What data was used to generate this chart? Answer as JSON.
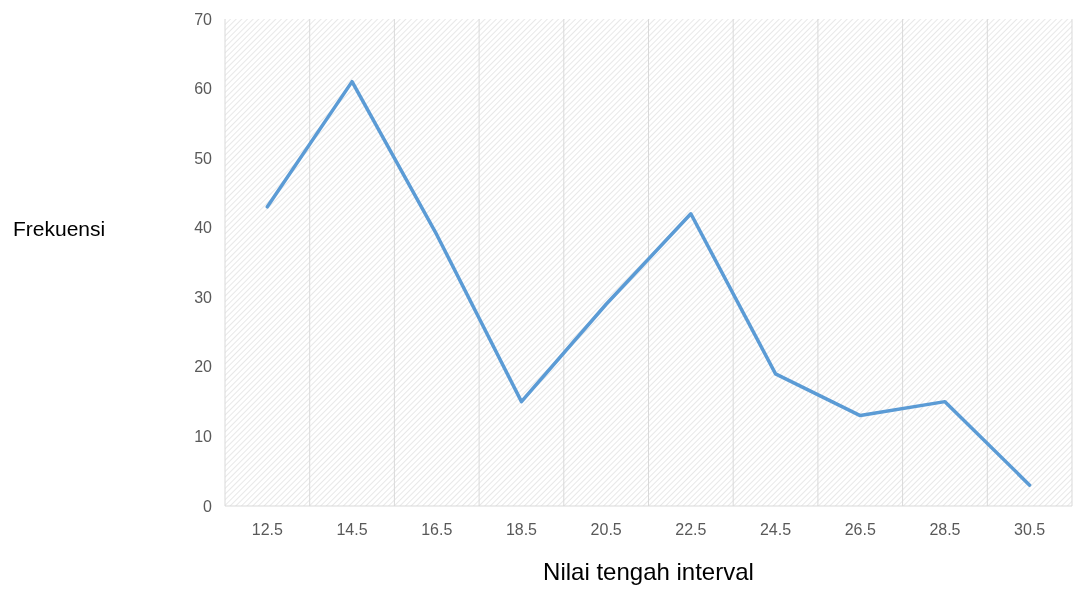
{
  "chart_data": {
    "type": "line",
    "xlabel": "Nilai tengah interval",
    "ylabel": "Frekuensi",
    "categories": [
      "12.5",
      "14.5",
      "16.5",
      "18.5",
      "20.5",
      "22.5",
      "24.5",
      "26.5",
      "28.5",
      "30.5"
    ],
    "series": [
      {
        "color": "#5b9bd5",
        "values": [
          43,
          61,
          39,
          15,
          29,
          42,
          19,
          13,
          15,
          3
        ]
      }
    ],
    "ylim": [
      0,
      70
    ],
    "yticks": [
      0,
      10,
      20,
      30,
      40,
      50,
      60,
      70
    ],
    "grid": "x",
    "marker": "none",
    "line_style": "solid"
  }
}
